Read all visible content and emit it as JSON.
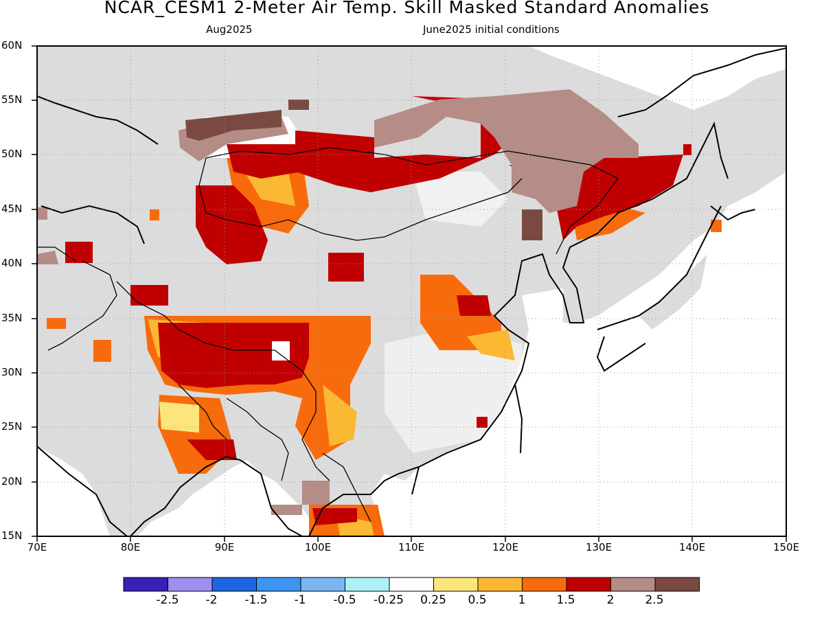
{
  "title": "NCAR_CESM1 2-Meter Air Temp. Skill Masked Standard Anomalies",
  "subtitle_left": "Aug2025",
  "subtitle_right": "June2025 initial conditions",
  "lat_labels": [
    "60N",
    "55N",
    "50N",
    "45N",
    "40N",
    "35N",
    "30N",
    "25N",
    "20N",
    "15N"
  ],
  "lon_labels": [
    "70E",
    "80E",
    "90E",
    "100E",
    "110E",
    "120E",
    "130E",
    "140E",
    "150E"
  ],
  "map_extent": {
    "lon": [
      70,
      150
    ],
    "lat": [
      15,
      60
    ]
  },
  "colorbar": {
    "colors": [
      "#3a1fb5",
      "#9f8df0",
      "#1f64e0",
      "#3c95f0",
      "#7ab6f2",
      "#aef0f8",
      "#ffffff",
      "#fde57d",
      "#fbb832",
      "#f86b0c",
      "#c00000",
      "#b58c86",
      "#7a4a42"
    ],
    "labels": [
      "-2.5",
      "-2",
      "-1.5",
      "-1",
      "-0.5",
      "-0.25",
      "0.25",
      "0.5",
      "1",
      "1.5",
      "2",
      "2.5"
    ]
  },
  "legend_colors": {
    "masked": "#dcdcdc",
    "ocean": "#ffffff"
  }
}
